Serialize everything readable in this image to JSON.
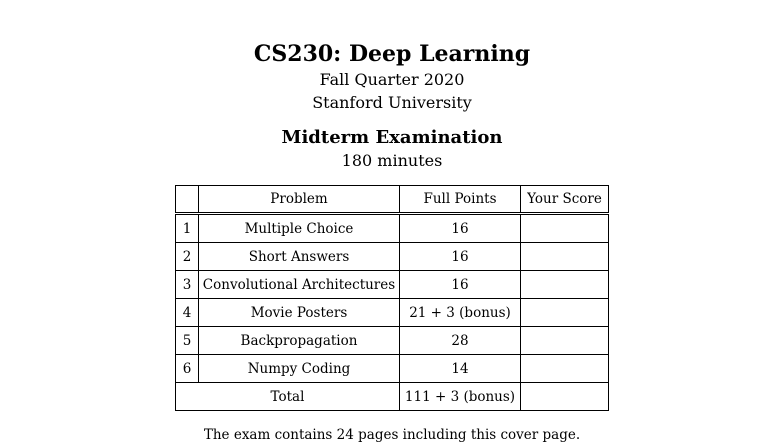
{
  "header": {
    "title": "CS230: Deep Learning",
    "term": "Fall Quarter 2020",
    "university": "Stanford University",
    "exam": "Midterm Examination",
    "duration": "180 minutes"
  },
  "table": {
    "columns": [
      "",
      "Problem",
      "Full Points",
      "Your Score"
    ],
    "rows": [
      {
        "num": "1",
        "problem": "Multiple Choice",
        "points": "16",
        "score": ""
      },
      {
        "num": "2",
        "problem": "Short Answers",
        "points": "16",
        "score": ""
      },
      {
        "num": "3",
        "problem": "Convolutional Architectures",
        "points": "16",
        "score": ""
      },
      {
        "num": "4",
        "problem": "Movie Posters",
        "points": "21 + 3 (bonus)",
        "score": ""
      },
      {
        "num": "5",
        "problem": "Backpropagation",
        "points": "28",
        "score": ""
      },
      {
        "num": "6",
        "problem": "Numpy Coding",
        "points": "14",
        "score": ""
      }
    ],
    "total": {
      "label": "Total",
      "points": "111 + 3 (bonus)",
      "score": ""
    }
  },
  "footer": "The exam contains 24 pages including this cover page."
}
